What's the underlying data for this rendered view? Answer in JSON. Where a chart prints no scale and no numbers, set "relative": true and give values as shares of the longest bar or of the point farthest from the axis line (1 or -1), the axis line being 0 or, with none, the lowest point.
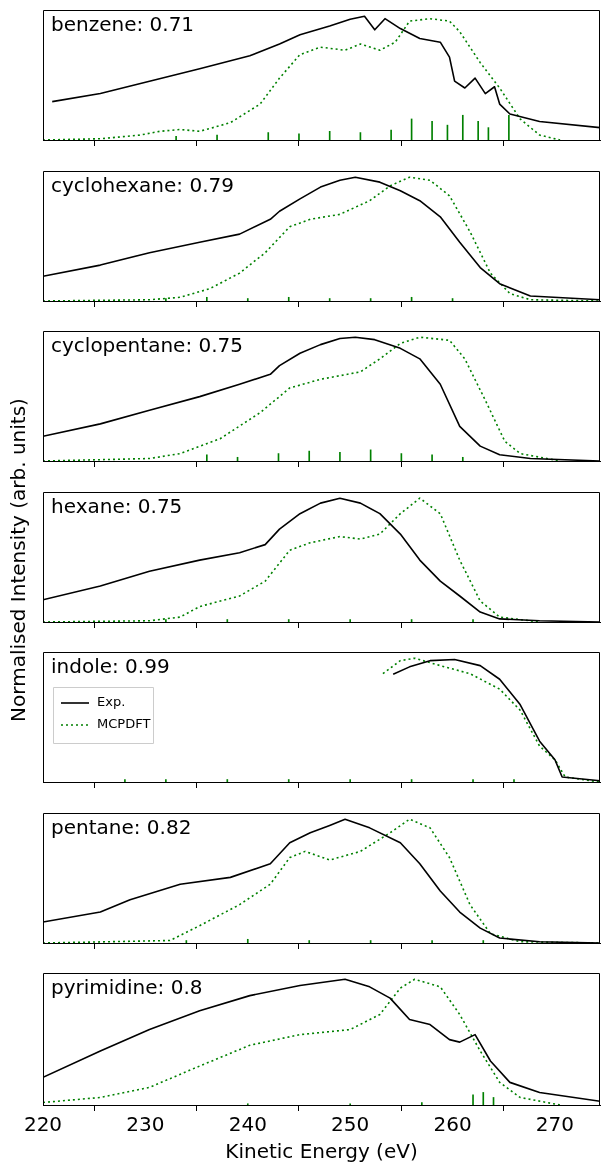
{
  "chart_data": [
    {
      "type": "line",
      "title": "benzene: 0.71",
      "relative": true,
      "xlim": [
        220,
        274.4
      ],
      "xticks": [
        {
          "value": 220,
          "label": null
        },
        {
          "value": 230,
          "label": null
        },
        {
          "value": 240,
          "label": null
        },
        {
          "value": 250,
          "label": null
        },
        {
          "value": 260,
          "label": null
        },
        {
          "value": 270,
          "label": null
        }
      ],
      "tick_labels": false,
      "series": [
        {
          "color": "#000000",
          "line_style": "solid",
          "x": [
            220.9,
            225.6,
            230.4,
            235.3,
            240.2,
            243.1,
            245.1,
            248,
            250,
            251.4,
            252.4,
            253.4,
            254.9,
            256.8,
            258.8,
            259.7,
            260.2,
            261.2,
            262.2,
            263.2,
            264.1,
            264.6,
            265.6,
            268.5,
            274.4
          ],
          "values": [
            0.31,
            0.375,
            0.475,
            0.575,
            0.68,
            0.775,
            0.85,
            0.92,
            0.975,
            1,
            0.89,
            0.98,
            0.9,
            0.82,
            0.79,
            0.67,
            0.475,
            0.42,
            0.5,
            0.375,
            0.43,
            0.29,
            0.21,
            0.15,
            0.1
          ]
        },
        {
          "color": "#008000",
          "line_style": "dotted",
          "x": [
            220,
            225.6,
            229.5,
            231.4,
            233.4,
            235.3,
            238.3,
            241.2,
            243.1,
            245.1,
            247.1,
            249.5,
            251,
            252.9,
            254.4,
            255.8,
            257.8,
            259.7,
            260.7,
            262.7,
            264.6,
            266.6,
            268.5,
            270.5
          ],
          "values": [
            0,
            0.01,
            0.04,
            0.07,
            0.085,
            0.07,
            0.14,
            0.29,
            0.5,
            0.69,
            0.75,
            0.725,
            0.775,
            0.725,
            0.79,
            0.96,
            0.98,
            0.96,
            0.875,
            0.625,
            0.42,
            0.17,
            0.04,
            0
          ]
        },
        {
          "type": "bar",
          "color": "#008000",
          "x": [
            233,
            237,
            242,
            245,
            248,
            251,
            254,
            256,
            258,
            259.5,
            261,
            262.5,
            263.5,
            265.5
          ],
          "values": [
            0.03,
            0.04,
            0.06,
            0.05,
            0.07,
            0.06,
            0.08,
            0.17,
            0.15,
            0.12,
            0.2,
            0.15,
            0.1,
            0.2
          ]
        }
      ]
    },
    {
      "type": "line",
      "title": "cyclohexane: 0.79",
      "relative": true,
      "xlim": [
        220,
        274.4
      ],
      "xticks": [
        {
          "value": 220,
          "label": null
        },
        {
          "value": 230,
          "label": null
        },
        {
          "value": 240,
          "label": null
        },
        {
          "value": 250,
          "label": null
        },
        {
          "value": 260,
          "label": null
        },
        {
          "value": 270,
          "label": null
        }
      ],
      "tick_labels": false,
      "series": [
        {
          "color": "#000000",
          "line_style": "solid",
          "x": [
            220,
            225.6,
            230.4,
            235.3,
            239.2,
            242.2,
            243.1,
            245.1,
            247.1,
            249,
            250.5,
            252.9,
            254.9,
            256.8,
            258.8,
            260.7,
            262.7,
            264.6,
            267.6,
            274.4
          ],
          "values": [
            0.2,
            0.29,
            0.39,
            0.475,
            0.54,
            0.66,
            0.725,
            0.825,
            0.92,
            0.975,
            1,
            0.96,
            0.89,
            0.81,
            0.68,
            0.475,
            0.27,
            0.14,
            0.04,
            0.01
          ]
        },
        {
          "color": "#008000",
          "line_style": "dotted",
          "x": [
            220,
            230.4,
            233.4,
            236.3,
            239.2,
            241.7,
            244.1,
            246.1,
            249,
            251.9,
            253.9,
            255.8,
            257.8,
            259.7,
            261.7,
            263.7,
            265.6,
            267.6,
            274.4
          ],
          "values": [
            0,
            0.01,
            0.03,
            0.1,
            0.225,
            0.39,
            0.6,
            0.66,
            0.7,
            0.81,
            0.93,
            1,
            0.975,
            0.85,
            0.56,
            0.225,
            0.06,
            0.01,
            0
          ]
        },
        {
          "type": "bar",
          "color": "#008000",
          "x": [
            232,
            236,
            240,
            244,
            248,
            252,
            256,
            260
          ],
          "values": [
            0.02,
            0.03,
            0.02,
            0.03,
            0.02,
            0.02,
            0.03,
            0.02
          ]
        }
      ]
    },
    {
      "type": "line",
      "title": "cyclopentane: 0.75",
      "relative": true,
      "xlim": [
        220,
        274.4
      ],
      "xticks": [
        {
          "value": 220,
          "label": null
        },
        {
          "value": 230,
          "label": null
        },
        {
          "value": 240,
          "label": null
        },
        {
          "value": 250,
          "label": null
        },
        {
          "value": 260,
          "label": null
        },
        {
          "value": 270,
          "label": null
        }
      ],
      "tick_labels": false,
      "series": [
        {
          "color": "#000000",
          "line_style": "solid",
          "x": [
            220,
            225.6,
            230.4,
            235.3,
            239.2,
            242.2,
            243.1,
            245.1,
            247.1,
            249,
            250.5,
            252.4,
            254.9,
            256.8,
            258.8,
            260.7,
            262.7,
            264.6,
            267.6,
            274.4
          ],
          "values": [
            0.2,
            0.3,
            0.41,
            0.52,
            0.62,
            0.7,
            0.77,
            0.87,
            0.94,
            0.99,
            1,
            0.98,
            0.91,
            0.825,
            0.62,
            0.28,
            0.12,
            0.05,
            0.02,
            0
          ]
        },
        {
          "color": "#008000",
          "line_style": "dotted",
          "x": [
            220,
            230.4,
            233.4,
            237.3,
            241.2,
            244.1,
            247.1,
            251,
            252.9,
            254.9,
            256.8,
            259.7,
            261.2,
            263.2,
            265.1,
            266.6,
            270.5
          ],
          "values": [
            0,
            0.02,
            0.06,
            0.18,
            0.39,
            0.59,
            0.66,
            0.72,
            0.825,
            0.95,
            1,
            0.975,
            0.825,
            0.49,
            0.16,
            0.06,
            0
          ]
        },
        {
          "type": "bar",
          "color": "#008000",
          "x": [
            236,
            239,
            243,
            246,
            249,
            252,
            255,
            258,
            261
          ],
          "values": [
            0.05,
            0.03,
            0.06,
            0.08,
            0.07,
            0.09,
            0.06,
            0.05,
            0.03
          ]
        }
      ]
    },
    {
      "type": "line",
      "title": "hexane: 0.75",
      "ylabel": "Normalised Intensity (arb. units)",
      "relative": true,
      "xlim": [
        220,
        274.4
      ],
      "xticks": [
        {
          "value": 220,
          "label": null
        },
        {
          "value": 230,
          "label": null
        },
        {
          "value": 240,
          "label": null
        },
        {
          "value": 250,
          "label": null
        },
        {
          "value": 260,
          "label": null
        },
        {
          "value": 270,
          "label": null
        }
      ],
      "tick_labels": false,
      "series": [
        {
          "color": "#000000",
          "line_style": "solid",
          "x": [
            220,
            225.6,
            230.4,
            235.3,
            239.2,
            241.7,
            243.1,
            245.1,
            247.1,
            249,
            251,
            252.9,
            254.9,
            256.8,
            258.8,
            260.7,
            262.7,
            264.6,
            268.5,
            274.4
          ],
          "values": [
            0.18,
            0.29,
            0.41,
            0.5,
            0.56,
            0.625,
            0.75,
            0.875,
            0.96,
            1,
            0.96,
            0.875,
            0.71,
            0.5,
            0.33,
            0.21,
            0.08,
            0.025,
            0.01,
            0
          ]
        },
        {
          "color": "#008000",
          "line_style": "dotted",
          "x": [
            220,
            230.4,
            233.4,
            235.3,
            239.2,
            241.7,
            244.1,
            246.1,
            249,
            251,
            252.9,
            254.9,
            256.8,
            258.8,
            260.7,
            262.7,
            264.6,
            268.5
          ],
          "values": [
            0,
            0.01,
            0.04,
            0.125,
            0.21,
            0.33,
            0.58,
            0.64,
            0.69,
            0.67,
            0.71,
            0.875,
            1,
            0.875,
            0.5,
            0.17,
            0.04,
            0
          ]
        },
        {
          "type": "bar",
          "color": "#008000",
          "x": [
            232,
            238,
            244,
            250,
            256,
            262
          ],
          "values": [
            0.02,
            0.02,
            0.02,
            0.02,
            0.02,
            0.02
          ]
        }
      ]
    },
    {
      "type": "line",
      "title": "indole: 0.99",
      "relative": true,
      "legend": "center left",
      "xlim": [
        220,
        274.4
      ],
      "xticks": [
        {
          "value": 220,
          "label": null
        },
        {
          "value": 230,
          "label": null
        },
        {
          "value": 240,
          "label": null
        },
        {
          "value": 250,
          "label": null
        },
        {
          "value": 260,
          "label": null
        },
        {
          "value": 270,
          "label": null
        }
      ],
      "tick_labels": false,
      "series": [
        {
          "name": "Exp.",
          "color": "#000000",
          "line_style": "solid",
          "x": [
            254.2,
            255.8,
            257.8,
            260.2,
            262.7,
            264.6,
            266.6,
            268.5,
            270,
            270.7,
            274.4
          ],
          "values": [
            0.87,
            0.93,
            0.98,
            0.99,
            0.94,
            0.83,
            0.625,
            0.33,
            0.18,
            0.04,
            0.01
          ]
        },
        {
          "name": "MCPDFT",
          "color": "#008000",
          "line_style": "dotted",
          "x": [
            253.2,
            254.9,
            256.3,
            258.8,
            261.7,
            264.6,
            266.6,
            268.5,
            270,
            271,
            274.4
          ],
          "values": [
            0.875,
            0.98,
            1,
            0.94,
            0.875,
            0.75,
            0.58,
            0.29,
            0.18,
            0.04,
            0
          ]
        },
        {
          "type": "bar",
          "color": "#008000",
          "x": [
            228,
            232,
            238,
            244,
            250,
            256,
            262,
            266
          ],
          "values": [
            0.02,
            0.02,
            0.02,
            0.02,
            0.02,
            0.02,
            0.02,
            0.02
          ]
        }
      ]
    },
    {
      "type": "line",
      "title": "pentane: 0.82",
      "relative": true,
      "xlim": [
        220,
        274.4
      ],
      "xticks": [
        {
          "value": 220,
          "label": null
        },
        {
          "value": 230,
          "label": null
        },
        {
          "value": 240,
          "label": null
        },
        {
          "value": 250,
          "label": null
        },
        {
          "value": 260,
          "label": null
        },
        {
          "value": 270,
          "label": null
        }
      ],
      "tick_labels": false,
      "series": [
        {
          "color": "#000000",
          "line_style": "solid",
          "x": [
            220,
            225.6,
            228.5,
            233.4,
            238.3,
            242.2,
            244.1,
            246.1,
            248,
            249.5,
            251.9,
            254.9,
            256.8,
            258.8,
            260.7,
            262.7,
            264.6,
            268.5,
            274.4
          ],
          "values": [
            0.17,
            0.25,
            0.35,
            0.475,
            0.53,
            0.64,
            0.81,
            0.89,
            0.95,
            1,
            0.93,
            0.81,
            0.64,
            0.42,
            0.25,
            0.12,
            0.04,
            0.01,
            0
          ]
        },
        {
          "color": "#008000",
          "line_style": "dotted",
          "x": [
            220,
            232.4,
            235.3,
            239.2,
            242.2,
            244.1,
            245.6,
            248,
            251,
            253.9,
            255.8,
            257.8,
            259.7,
            261.7,
            263.7,
            266.6,
            274.4
          ],
          "values": [
            0,
            0.02,
            0.14,
            0.31,
            0.475,
            0.69,
            0.74,
            0.67,
            0.74,
            0.89,
            1,
            0.93,
            0.69,
            0.31,
            0.075,
            0.01,
            0
          ]
        },
        {
          "type": "bar",
          "color": "#008000",
          "x": [
            234,
            240,
            246,
            252,
            258,
            263
          ],
          "values": [
            0.02,
            0.03,
            0.02,
            0.02,
            0.02,
            0.02
          ]
        }
      ]
    },
    {
      "type": "line",
      "title": "pyrimidine: 0.8",
      "xlabel": "Kinetic Energy (eV)",
      "relative": true,
      "xlim": [
        220,
        274.4
      ],
      "xticks": [
        220,
        230,
        240,
        250,
        260,
        270
      ],
      "tick_labels": "x",
      "series": [
        {
          "color": "#000000",
          "line_style": "solid",
          "x": [
            220,
            225.6,
            230.4,
            235.3,
            240.2,
            245.1,
            249.5,
            251.9,
            253.9,
            255.8,
            257.8,
            259.7,
            260.7,
            262.2,
            263.7,
            265.6,
            268.5,
            274.4
          ],
          "values": [
            0.22,
            0.43,
            0.6,
            0.75,
            0.87,
            0.95,
            1,
            0.94,
            0.85,
            0.68,
            0.64,
            0.52,
            0.5,
            0.56,
            0.35,
            0.18,
            0.1,
            0.03
          ]
        },
        {
          "color": "#008000",
          "line_style": "dotted",
          "x": [
            220,
            225.6,
            230.4,
            235.3,
            240.2,
            245.1,
            250,
            252.9,
            254.9,
            256.3,
            258.8,
            260.7,
            262.7,
            264.6,
            266.6,
            270.5
          ],
          "values": [
            0.02,
            0.06,
            0.14,
            0.31,
            0.475,
            0.56,
            0.6,
            0.72,
            0.93,
            1,
            0.94,
            0.72,
            0.43,
            0.18,
            0.06,
            0
          ]
        },
        {
          "type": "bar",
          "color": "#008000",
          "x": [
            240,
            250,
            257,
            262,
            263,
            264
          ],
          "values": [
            0.01,
            0.01,
            0.02,
            0.08,
            0.1,
            0.06
          ]
        }
      ]
    }
  ]
}
